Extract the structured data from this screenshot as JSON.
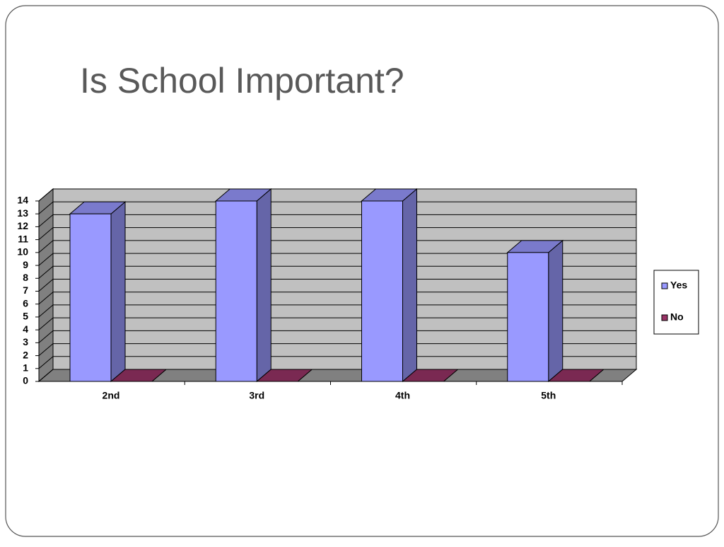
{
  "chart_data": {
    "type": "bar3d",
    "title": "Is School Important?",
    "categories": [
      "2nd",
      "3rd",
      "4th",
      "5th"
    ],
    "series": [
      {
        "name": "Yes",
        "color": "#9999ff",
        "values": [
          13,
          14,
          14,
          10
        ]
      },
      {
        "name": "No",
        "color": "#993366",
        "values": [
          0,
          0,
          0,
          0
        ]
      }
    ],
    "ylim": [
      0,
      14
    ],
    "yticks": [
      0,
      1,
      2,
      3,
      4,
      5,
      6,
      7,
      8,
      9,
      10,
      11,
      12,
      13,
      14
    ],
    "grid": true,
    "legend": "right"
  }
}
